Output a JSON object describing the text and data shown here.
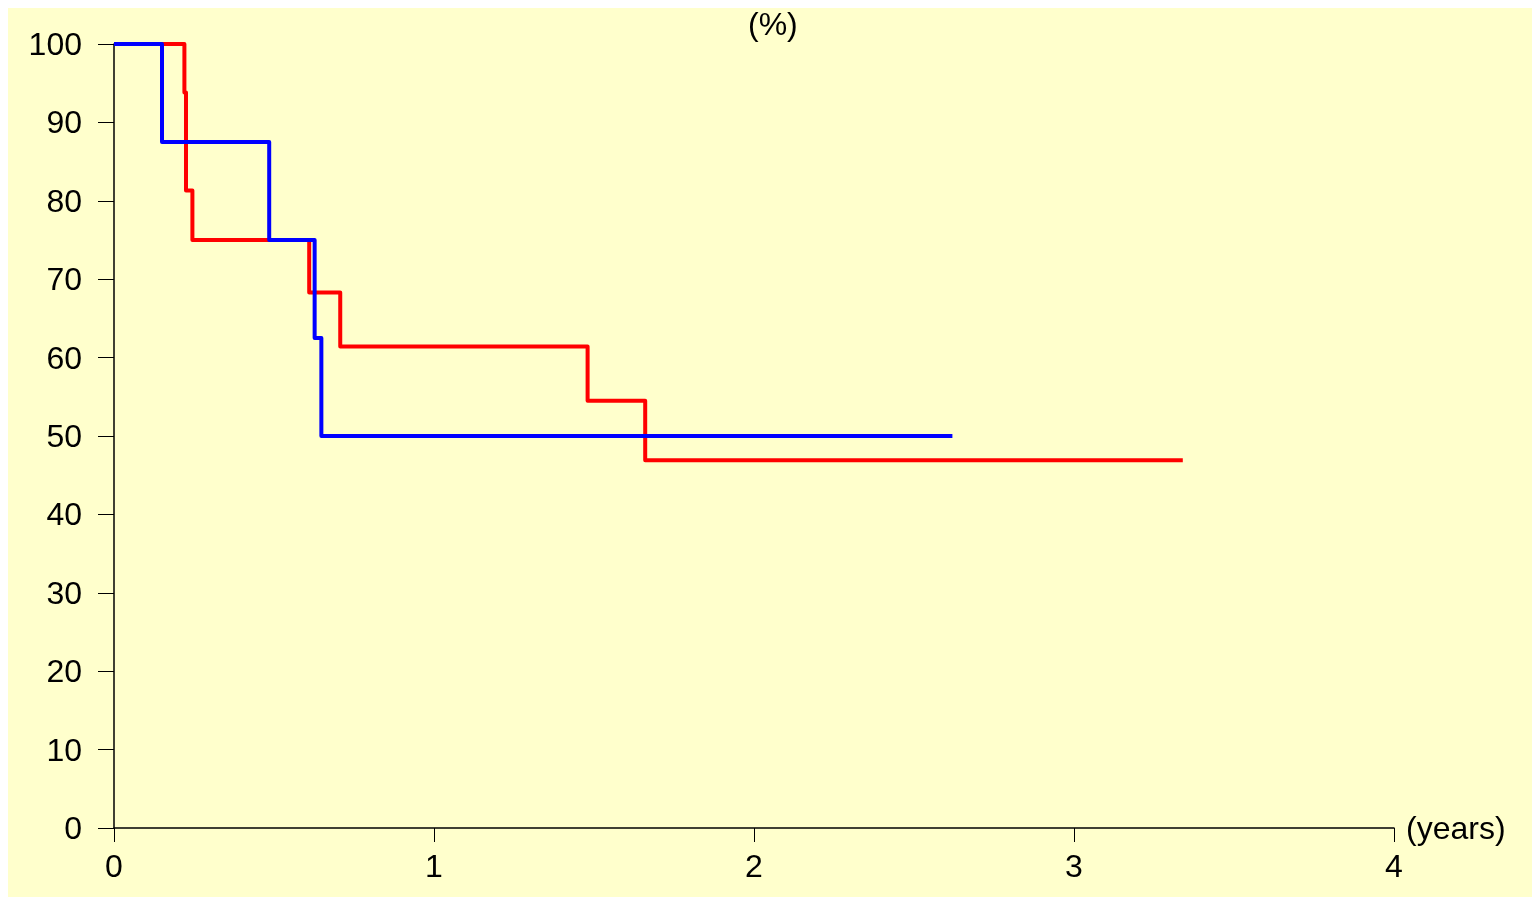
{
  "chart_data": {
    "type": "step",
    "ylabel": "(%)",
    "xlabel": "(years)",
    "xlim": [
      0,
      4
    ],
    "xticks": [
      0,
      1,
      2,
      3,
      4
    ],
    "ylim": [
      0,
      100
    ],
    "yticks": [
      0,
      10,
      20,
      30,
      40,
      50,
      60,
      70,
      80,
      90,
      100
    ],
    "grid": false,
    "marker": "none",
    "line_style": "solid",
    "series": [
      {
        "color": "#ff0000",
        "x": [
          0,
          0.22,
          0.225,
          0.245,
          0.61,
          0.707,
          1.48,
          1.66,
          3.34
        ],
        "values": [
          100,
          93.8,
          81.3,
          75,
          68.3,
          61.4,
          54.5,
          46.9,
          46.9
        ]
      },
      {
        "color": "#0000ff",
        "x": [
          0,
          0.15,
          0.485,
          0.627,
          0.648,
          2.62
        ],
        "values": [
          100,
          87.5,
          75,
          62.5,
          50,
          50
        ]
      }
    ]
  }
}
